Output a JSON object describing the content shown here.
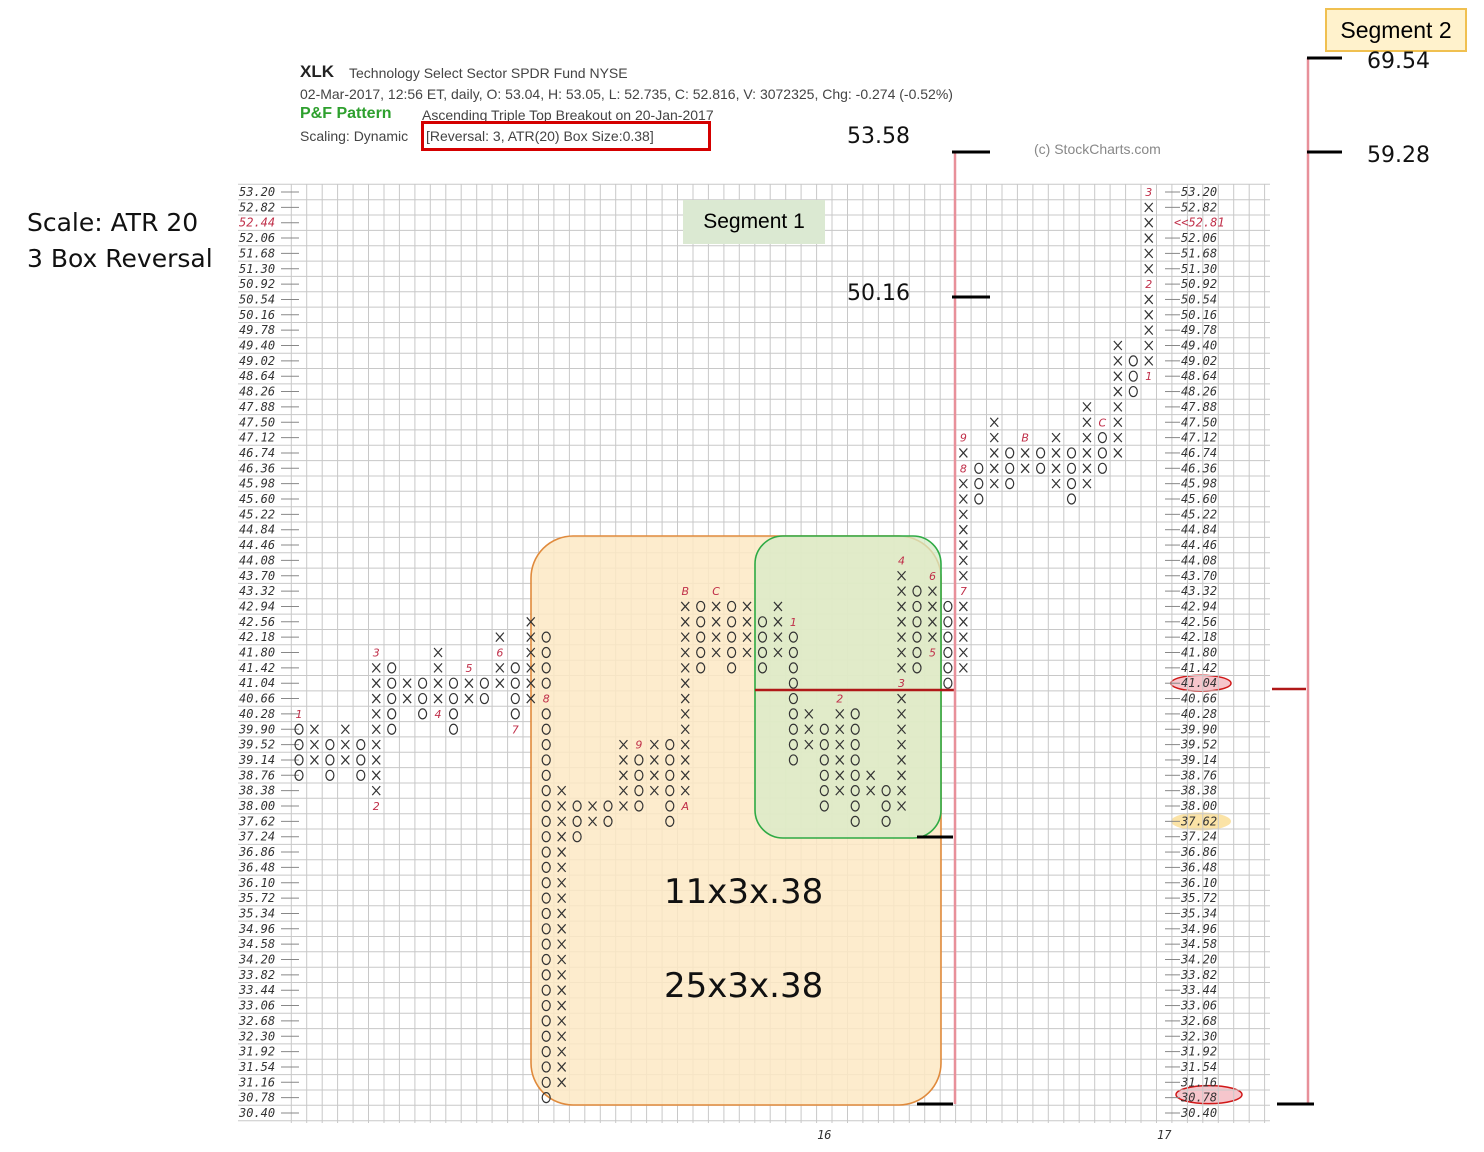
{
  "header": {
    "symbol": "XLK",
    "name": "Technology Select Sector SPDR Fund  NYSE",
    "quote_line": "02-Mar-2017, 12:56 ET, daily, O: 53.04, H: 53.05, L: 52.735, C: 52.816, V: 3072325, Chg: -0.274 (-0.52%)",
    "pattern_label": "P&F Pattern",
    "pattern_text": "Ascending Triple Top Breakout on 20-Jan-2017",
    "scaling_label": "Scaling: Dynamic",
    "scaling_params": "[Reversal: 3, ATR(20) Box Size:0.38]",
    "copyright": "(c) StockCharts.com"
  },
  "annotations": {
    "scale_line1": "Scale: ATR 20",
    "scale_line2": "3 Box Reversal",
    "segment1": "Segment 1",
    "segment2": "Segment 2",
    "target_53": "53.58",
    "target_50": "50.16",
    "target_69": "69.54",
    "target_59": "59.28",
    "count_small": "11x3x.38",
    "count_large": "25x3x.38"
  },
  "colors": {
    "grid": "#c8c8c8",
    "symbol": "#333333",
    "month_marker": "#c0304a",
    "pattern_green": "#2ea02e",
    "orange_box": "#e08a3c",
    "orange_fill": "#fde9c4",
    "green_box": "#2eaa44",
    "green_fill": "#d7ebc7",
    "pink_line": "#e8909a",
    "red_line": "#b01818",
    "price_tag": "#c0304a"
  },
  "chart_data": {
    "type": "point-and-figure",
    "box_size": 0.38,
    "reversal": 3,
    "ylim": [
      30.4,
      53.2
    ],
    "y_ticks": [
      "53.20",
      "52.82",
      "52.44",
      "52.06",
      "51.68",
      "51.30",
      "50.92",
      "50.54",
      "50.16",
      "49.78",
      "49.40",
      "49.02",
      "48.64",
      "48.26",
      "47.88",
      "47.50",
      "47.12",
      "46.74",
      "46.36",
      "45.98",
      "45.60",
      "45.22",
      "44.84",
      "44.46",
      "44.08",
      "43.70",
      "43.32",
      "42.94",
      "42.56",
      "42.18",
      "41.80",
      "41.42",
      "41.04",
      "40.66",
      "40.28",
      "39.90",
      "39.52",
      "39.14",
      "38.76",
      "38.38",
      "38.00",
      "37.62",
      "37.24",
      "36.86",
      "36.48",
      "36.10",
      "35.72",
      "35.34",
      "34.96",
      "34.58",
      "34.20",
      "33.82",
      "33.44",
      "33.06",
      "32.68",
      "32.30",
      "31.92",
      "31.54",
      "31.16",
      "30.78",
      "30.40"
    ],
    "right_ticks": [
      "53.20",
      "52.82",
      "52.06",
      "51.68",
      "51.30",
      "50.92",
      "50.54",
      "50.16",
      "49.78",
      "49.40",
      "49.02",
      "48.64",
      "48.26",
      "47.88",
      "47.50",
      "47.12",
      "46.74",
      "46.36",
      "45.98",
      "45.60",
      "45.22",
      "44.84",
      "44.46",
      "44.08",
      "43.70",
      "43.32",
      "42.94",
      "42.56",
      "42.18",
      "41.80",
      "41.42",
      "41.04",
      "40.66",
      "40.28",
      "39.90",
      "39.52",
      "39.14",
      "38.76",
      "38.38",
      "38.00",
      "37.62",
      "37.24",
      "36.86",
      "36.48",
      "36.10",
      "35.72",
      "35.34",
      "34.96",
      "34.58",
      "34.20",
      "33.82",
      "33.44",
      "33.06",
      "32.68",
      "32.30",
      "31.92",
      "31.54",
      "31.16",
      "30.78",
      "30.40"
    ],
    "last_price_tag": "<<52.81",
    "x_labels": [
      {
        "col": 34,
        "text": "16"
      },
      {
        "col": 56,
        "text": "17"
      }
    ],
    "columns": [
      {
        "t": "O",
        "hi": 39.9,
        "lo": 38.76,
        "m": [
          [
            40.28,
            "1"
          ]
        ]
      },
      {
        "t": "X",
        "hi": 39.9,
        "lo": 39.14
      },
      {
        "t": "O",
        "hi": 39.52,
        "lo": 38.76
      },
      {
        "t": "X",
        "hi": 39.9,
        "lo": 39.14
      },
      {
        "t": "O",
        "hi": 39.52,
        "lo": 38.76
      },
      {
        "t": "X",
        "hi": 41.42,
        "lo": 38.38,
        "m": [
          [
            41.8,
            "3"
          ],
          [
            38.0,
            "2"
          ]
        ]
      },
      {
        "t": "O",
        "hi": 41.42,
        "lo": 39.9
      },
      {
        "t": "X",
        "hi": 41.04,
        "lo": 40.66
      },
      {
        "t": "O",
        "hi": 41.04,
        "lo": 40.28
      },
      {
        "t": "X",
        "hi": 41.8,
        "lo": 40.66,
        "m": [
          [
            40.28,
            "4"
          ]
        ]
      },
      {
        "t": "O",
        "hi": 41.04,
        "lo": 39.9
      },
      {
        "t": "X",
        "hi": 41.42,
        "lo": 40.66,
        "m": [
          [
            41.42,
            "5"
          ]
        ]
      },
      {
        "t": "O",
        "hi": 41.04,
        "lo": 40.66
      },
      {
        "t": "X",
        "hi": 42.18,
        "lo": 41.04,
        "m": [
          [
            41.8,
            "6"
          ]
        ]
      },
      {
        "t": "O",
        "hi": 41.42,
        "lo": 40.28,
        "m": [
          [
            39.9,
            "7"
          ]
        ]
      },
      {
        "t": "X",
        "hi": 42.56,
        "lo": 40.66
      },
      {
        "t": "O",
        "hi": 42.18,
        "lo": 30.78,
        "m": [
          [
            40.66,
            "8"
          ]
        ]
      },
      {
        "t": "X",
        "hi": 38.38,
        "lo": 31.16
      },
      {
        "t": "O",
        "hi": 38.0,
        "lo": 37.24
      },
      {
        "t": "X",
        "hi": 38.0,
        "lo": 37.62
      },
      {
        "t": "O",
        "hi": 38.0,
        "lo": 37.62
      },
      {
        "t": "X",
        "hi": 39.52,
        "lo": 38.0
      },
      {
        "t": "O",
        "hi": 39.14,
        "lo": 38.0,
        "m": [
          [
            39.52,
            "9"
          ]
        ]
      },
      {
        "t": "X",
        "hi": 39.52,
        "lo": 38.38
      },
      {
        "t": "O",
        "hi": 39.52,
        "lo": 37.62
      },
      {
        "t": "X",
        "hi": 43.32,
        "lo": 38.38,
        "m": [
          [
            43.32,
            "B"
          ],
          [
            38.0,
            "A"
          ]
        ]
      },
      {
        "t": "O",
        "hi": 42.94,
        "lo": 41.42
      },
      {
        "t": "X",
        "hi": 43.32,
        "lo": 41.8,
        "m": [
          [
            43.32,
            "C"
          ]
        ]
      },
      {
        "t": "O",
        "hi": 42.94,
        "lo": 41.42
      },
      {
        "t": "X",
        "hi": 42.94,
        "lo": 41.8
      },
      {
        "t": "O",
        "hi": 42.56,
        "lo": 41.42
      },
      {
        "t": "X",
        "hi": 42.94,
        "lo": 41.8
      },
      {
        "t": "O",
        "hi": 42.18,
        "lo": 39.14,
        "m": [
          [
            42.56,
            "1"
          ]
        ]
      },
      {
        "t": "X",
        "hi": 40.28,
        "lo": 39.52
      },
      {
        "t": "O",
        "hi": 39.9,
        "lo": 38.0
      },
      {
        "t": "X",
        "hi": 40.66,
        "lo": 38.38,
        "m": [
          [
            40.66,
            "2"
          ]
        ]
      },
      {
        "t": "O",
        "hi": 40.28,
        "lo": 37.62
      },
      {
        "t": "X",
        "hi": 38.76,
        "lo": 38.38
      },
      {
        "t": "O",
        "hi": 38.38,
        "lo": 37.62
      },
      {
        "t": "X",
        "hi": 43.7,
        "lo": 38.0,
        "m": [
          [
            44.08,
            "4"
          ],
          [
            41.04,
            "3"
          ]
        ]
      },
      {
        "t": "O",
        "hi": 43.32,
        "lo": 41.42
      },
      {
        "t": "X",
        "hi": 43.7,
        "lo": 41.8,
        "m": [
          [
            43.7,
            "6"
          ],
          [
            41.8,
            "5"
          ]
        ]
      },
      {
        "t": "O",
        "hi": 42.94,
        "lo": 41.04
      },
      {
        "t": "X",
        "hi": 46.74,
        "lo": 41.42,
        "m": [
          [
            47.12,
            "9"
          ],
          [
            46.36,
            "8"
          ],
          [
            43.32,
            "7"
          ]
        ]
      },
      {
        "t": "O",
        "hi": 46.36,
        "lo": 45.6
      },
      {
        "t": "X",
        "hi": 47.5,
        "lo": 45.98
      },
      {
        "t": "O",
        "hi": 46.74,
        "lo": 45.98
      },
      {
        "t": "X",
        "hi": 47.12,
        "lo": 46.36,
        "m": [
          [
            47.12,
            "B"
          ]
        ]
      },
      {
        "t": "O",
        "hi": 46.74,
        "lo": 46.36
      },
      {
        "t": "X",
        "hi": 47.12,
        "lo": 45.98
      },
      {
        "t": "O",
        "hi": 46.74,
        "lo": 45.6
      },
      {
        "t": "X",
        "hi": 47.88,
        "lo": 45.98
      },
      {
        "t": "O",
        "hi": 47.12,
        "lo": 46.36,
        "m": [
          [
            47.5,
            "C"
          ]
        ]
      },
      {
        "t": "X",
        "hi": 49.4,
        "lo": 46.74
      },
      {
        "t": "O",
        "hi": 49.02,
        "lo": 48.26
      },
      {
        "t": "X",
        "hi": 52.82,
        "lo": 48.64,
        "m": [
          [
            53.2,
            "3"
          ],
          [
            50.92,
            "2"
          ],
          [
            48.64,
            "1"
          ]
        ]
      }
    ]
  }
}
